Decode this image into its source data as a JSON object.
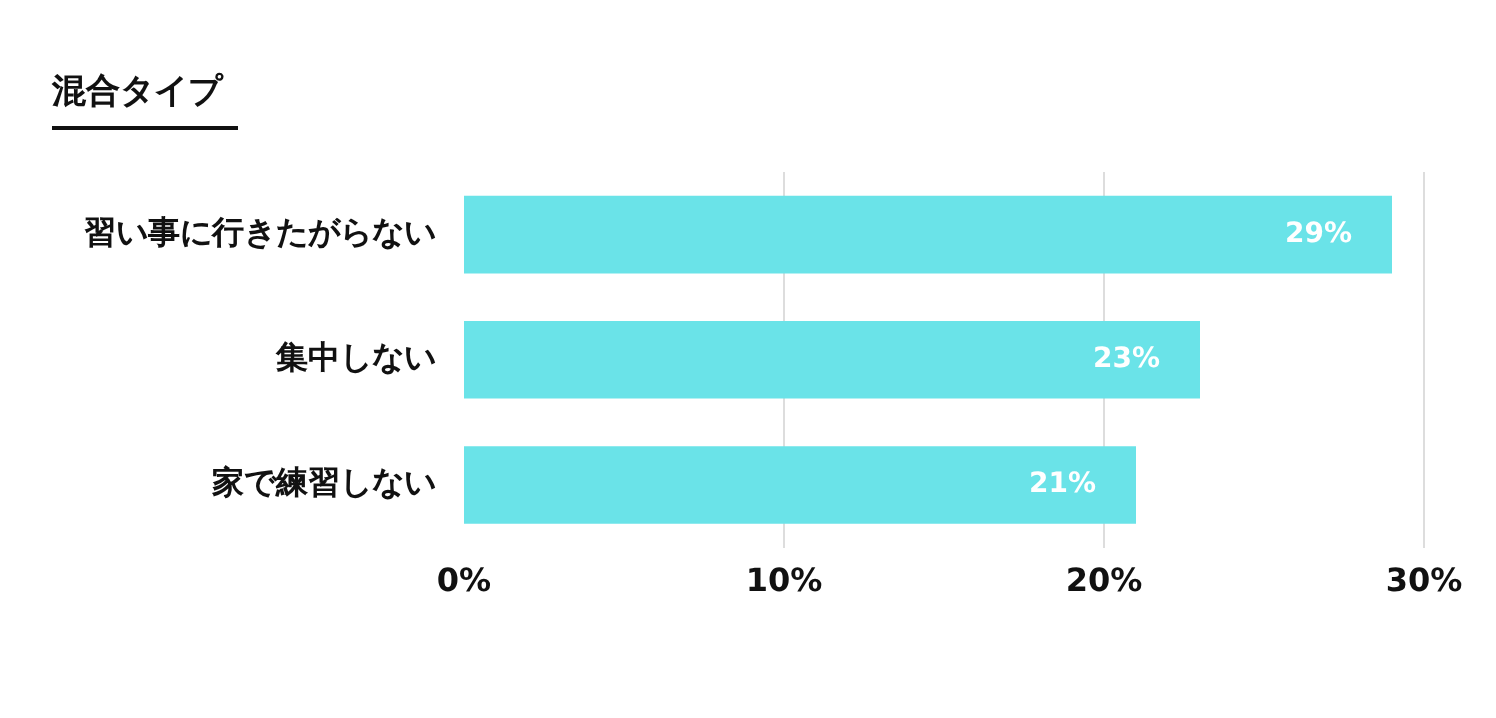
{
  "chart_data": {
    "type": "bar",
    "orientation": "horizontal",
    "title": "混合タイプ",
    "categories": [
      "習い事に行きたがらない",
      "集中しない",
      "家で練習しない"
    ],
    "values": [
      29,
      23,
      21
    ],
    "color": "#6ae3e8",
    "value_labels": [
      "29%",
      "23%",
      "21%"
    ],
    "xlim": [
      0,
      30
    ],
    "xticks": [
      {
        "value": 0,
        "label": "0%"
      },
      {
        "value": 10,
        "label": "10%"
      },
      {
        "value": 20,
        "label": "20%"
      },
      {
        "value": 30,
        "label": "30%"
      }
    ],
    "grid": "x",
    "legend": false
  }
}
